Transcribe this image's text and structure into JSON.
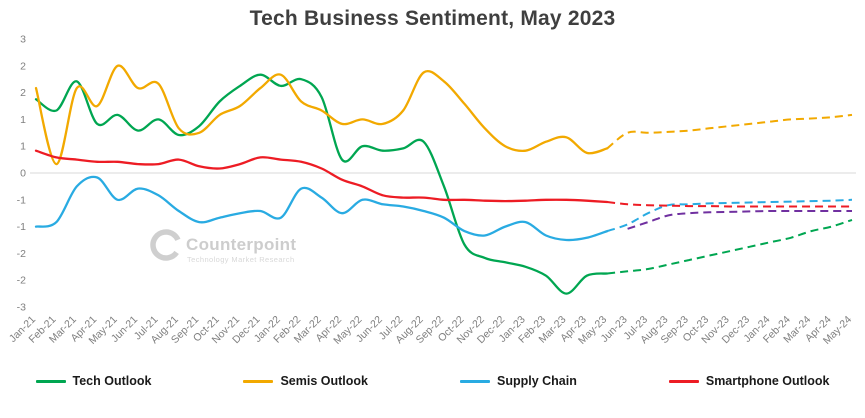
{
  "watermark": {
    "name": "Counterpoint",
    "tagline": "Technology Market Research"
  },
  "chart_data": {
    "type": "line",
    "title": "Tech Business Sentiment, May 2023",
    "xlabel": "",
    "ylabel": "",
    "ylim": [
      -3,
      3
    ],
    "grid": "zero-line-only",
    "legend_position": "bottom",
    "zero_line_color": "#d9d9d9",
    "solid_until_index": 28,
    "forecast_start_label": "May-23",
    "x": [
      "Jan-21",
      "Feb-21",
      "Mar-21",
      "Apr-21",
      "May-21",
      "Jun-21",
      "Jul-21",
      "Aug-21",
      "Sep-21",
      "Oct-21",
      "Nov-21",
      "Dec-21",
      "Jan-22",
      "Feb-22",
      "Mar-22",
      "Apr-22",
      "May-22",
      "Jun-22",
      "Jul-22",
      "Aug-22",
      "Sep-22",
      "Oct-22",
      "Nov-22",
      "Dec-22",
      "Jan-23",
      "Feb-23",
      "Mar-23",
      "Apr-23",
      "May-23",
      "Jun-23",
      "Jul-23",
      "Aug-23",
      "Sep-23",
      "Oct-23",
      "Nov-23",
      "Dec-23",
      "Jan-24",
      "Feb-24",
      "Mar-24",
      "Apr-24",
      "May-24"
    ],
    "ytick_values": [
      3,
      2.4,
      1.8,
      1.2,
      0.6,
      0,
      -0.6,
      -1.2,
      -1.8,
      -2.4,
      -3
    ],
    "ytick_labels": [
      "3",
      "2",
      "2",
      "1",
      "1",
      "0",
      "-1",
      "-1",
      "-2",
      "-2",
      "-3"
    ],
    "series": [
      {
        "name": "Tech Outlook",
        "color": "#00a651",
        "values": [
          1.65,
          1.4,
          2.05,
          1.1,
          1.3,
          0.95,
          1.2,
          0.85,
          1.05,
          1.6,
          1.95,
          2.2,
          1.95,
          2.1,
          1.7,
          0.3,
          0.6,
          0.5,
          0.55,
          0.7,
          -0.3,
          -1.6,
          -1.9,
          -2.0,
          -2.1,
          -2.3,
          -2.7,
          -2.3,
          -2.25,
          -2.2,
          -2.15,
          -2.05,
          -1.95,
          -1.85,
          -1.75,
          -1.65,
          -1.55,
          -1.45,
          -1.3,
          -1.2,
          -1.05
        ]
      },
      {
        "name": "Semis Outlook",
        "color": "#f2a900",
        "values": [
          1.9,
          0.2,
          1.9,
          1.5,
          2.4,
          1.9,
          2.0,
          1.0,
          0.9,
          1.3,
          1.5,
          1.9,
          2.2,
          1.6,
          1.4,
          1.1,
          1.2,
          1.1,
          1.4,
          2.25,
          2.05,
          1.55,
          1.0,
          0.6,
          0.5,
          0.7,
          0.8,
          0.45,
          0.55,
          0.9,
          0.9,
          0.92,
          0.95,
          1.0,
          1.05,
          1.1,
          1.15,
          1.2,
          1.22,
          1.25,
          1.3
        ]
      },
      {
        "name": "Supply Chain",
        "color": "#29abe2",
        "values": [
          -1.2,
          -1.1,
          -0.3,
          -0.1,
          -0.6,
          -0.35,
          -0.5,
          -0.85,
          -1.1,
          -1.0,
          -0.9,
          -0.85,
          -1.0,
          -0.35,
          -0.55,
          -0.9,
          -0.6,
          -0.7,
          -0.75,
          -0.85,
          -1.0,
          -1.3,
          -1.4,
          -1.2,
          -1.1,
          -1.4,
          -1.5,
          -1.45,
          -1.3,
          -1.15,
          -0.9,
          -0.72,
          -0.7,
          -0.68,
          -0.67,
          -0.66,
          -0.65,
          -0.64,
          -0.63,
          -0.62,
          -0.6
        ]
      },
      {
        "name": "Smartphone Outlook",
        "color": "#ed1c24",
        "values": [
          0.5,
          0.35,
          0.3,
          0.25,
          0.25,
          0.2,
          0.2,
          0.3,
          0.15,
          0.1,
          0.2,
          0.35,
          0.3,
          0.25,
          0.1,
          -0.15,
          -0.3,
          -0.5,
          -0.55,
          -0.55,
          -0.6,
          -0.6,
          -0.62,
          -0.63,
          -0.62,
          -0.6,
          -0.6,
          -0.62,
          -0.65,
          -0.7,
          -0.72,
          -0.73,
          -0.74,
          -0.74,
          -0.75,
          -0.75,
          -0.75,
          -0.75,
          -0.75,
          -0.75,
          -0.75
        ]
      },
      {
        "name": "",
        "color": "#7030a0",
        "values": [
          null,
          null,
          null,
          null,
          null,
          null,
          null,
          null,
          null,
          null,
          null,
          null,
          null,
          null,
          null,
          null,
          null,
          null,
          null,
          null,
          null,
          null,
          null,
          null,
          null,
          null,
          null,
          null,
          null,
          -1.25,
          -1.1,
          -0.95,
          -0.9,
          -0.88,
          -0.87,
          -0.86,
          -0.85,
          -0.85,
          -0.85,
          -0.85,
          -0.85
        ]
      }
    ]
  }
}
